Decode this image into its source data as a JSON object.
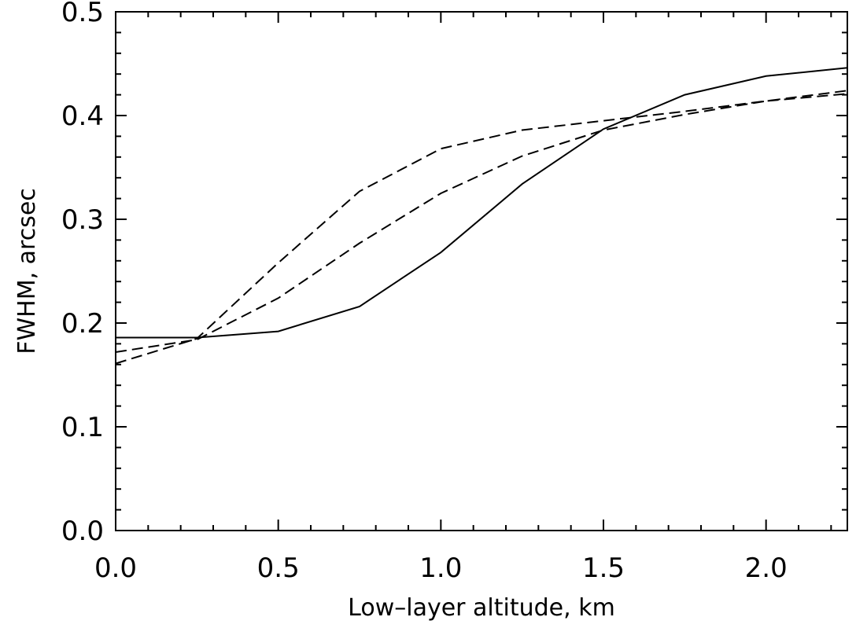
{
  "chart_data": {
    "type": "line",
    "title": "",
    "xlabel": "Low–layer altitude, km",
    "ylabel": "FWHM, arcsec",
    "xlim": [
      0.0,
      2.25
    ],
    "ylim": [
      0.0,
      0.5
    ],
    "grid": false,
    "x_ticks": [
      {
        "value": 0.0,
        "label": "0.0"
      },
      {
        "value": 0.5,
        "label": "0.5"
      },
      {
        "value": 1.0,
        "label": "1.0"
      },
      {
        "value": 1.5,
        "label": "1.5"
      },
      {
        "value": 2.0,
        "label": "2.0"
      }
    ],
    "y_ticks": [
      {
        "value": 0.0,
        "label": "0.0"
      },
      {
        "value": 0.1,
        "label": "0.1"
      },
      {
        "value": 0.2,
        "label": "0.2"
      },
      {
        "value": 0.3,
        "label": "0.3"
      },
      {
        "value": 0.4,
        "label": "0.4"
      },
      {
        "value": 0.5,
        "label": "0.5"
      }
    ],
    "x_minor_step": 0.1,
    "y_minor_step": 0.02,
    "x": [
      0.0,
      0.25,
      0.5,
      0.75,
      1.0,
      1.25,
      1.5,
      1.75,
      2.0,
      2.25
    ],
    "series": [
      {
        "style": "solid",
        "values": [
          0.186,
          0.186,
          0.192,
          0.216,
          0.268,
          0.334,
          0.387,
          0.42,
          0.438,
          0.446
        ]
      },
      {
        "style": "dashed",
        "values": [
          0.161,
          0.185,
          0.258,
          0.327,
          0.368,
          0.386,
          0.395,
          0.404,
          0.414,
          0.421
        ]
      },
      {
        "style": "dashed",
        "values": [
          0.172,
          0.184,
          0.224,
          0.277,
          0.325,
          0.361,
          0.386,
          0.401,
          0.414,
          0.424
        ]
      }
    ]
  }
}
